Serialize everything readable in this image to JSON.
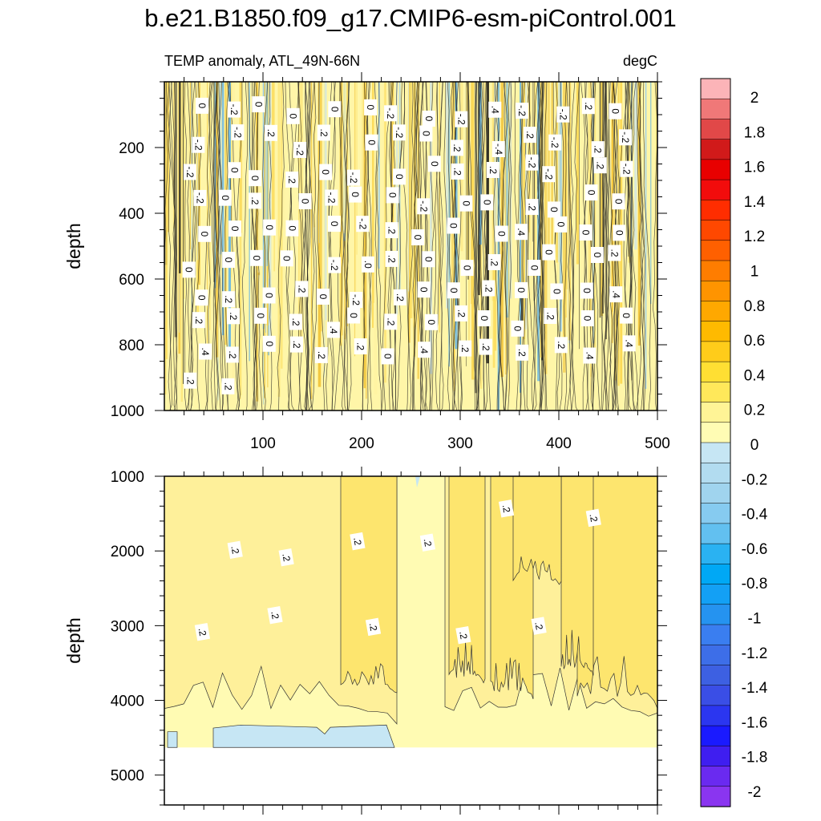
{
  "chart_data": {
    "type": "heatmap",
    "title": "b.e21.B1850.f09_g17.CMIP6-esm-piControl.001",
    "left_subtitle": "TEMP anomaly, ATL_49N-66N",
    "right_subtitle": "degC",
    "x": {
      "label": "",
      "range": [
        0,
        500
      ],
      "ticks": [
        100,
        200,
        300,
        400,
        500
      ]
    },
    "panels": [
      {
        "name": "upper",
        "ylabel": "depth",
        "yrange": [
          0,
          1000
        ],
        "yticks": [
          200,
          400,
          600,
          800,
          1000
        ]
      },
      {
        "name": "lower",
        "ylabel": "depth",
        "yrange": [
          1000,
          5400
        ],
        "yticks": [
          1000,
          2000,
          3000,
          4000,
          5000
        ]
      }
    ],
    "colorbar": {
      "unit": "degC",
      "labels": [
        "2",
        "1.8",
        "1.6",
        "1.4",
        "1.2",
        "1",
        "0.8",
        "0.6",
        "0.4",
        "0.2",
        "0",
        "-0.2",
        "-0.4",
        "-0.6",
        "-0.8",
        "-1",
        "-1.2",
        "-1.4",
        "-1.6",
        "-1.8",
        "-2"
      ],
      "colors": [
        "#fcb4b8",
        "#f07878",
        "#e14848",
        "#d11a1a",
        "#e80000",
        "#f20c0c",
        "#ff2d00",
        "#ff4800",
        "#ff6000",
        "#ff7d00",
        "#ff9400",
        "#ffa800",
        "#ffba00",
        "#ffcc1a",
        "#ffdf33",
        "#ffe85a",
        "#fff496",
        "#fffcb4",
        "#c6e6f4",
        "#b2dcf0",
        "#a0d4ee",
        "#86cbf0",
        "#62c0f0",
        "#2ab2f2",
        "#00a8f5",
        "#13a0f5",
        "#2593f0",
        "#3a7ef0",
        "#3d6ee8",
        "#3d60e2",
        "#3a4ee6",
        "#2b36f0",
        "#1a1aff",
        "#3f1ef0",
        "#6a2af0",
        "#8a35f0"
      ]
    },
    "contour_labels_upper": [
      "0",
      "-.2",
      "0",
      "0",
      "0",
      "0",
      "-.2",
      "0",
      "-.2",
      ".4",
      "-.2",
      "-.2",
      ".2",
      "0",
      "-.2",
      "-.2",
      ".2",
      "-.2",
      ".2",
      "0",
      "-.2",
      "0",
      ".2",
      "-.4",
      ".2",
      "-.2",
      ".2",
      "-.2",
      "-.2",
      "0",
      "0",
      ".2",
      "0",
      "-.2",
      "0",
      "0",
      ".2",
      ".2",
      "-.2",
      "-.2",
      ".2",
      "-.2",
      "-.2",
      "0",
      ".2",
      "0",
      "-.2",
      "0",
      "0",
      "-.2",
      "0",
      "0",
      ".2",
      "0",
      "0",
      "0",
      "0",
      "0",
      "0",
      "0",
      "0",
      "-.2",
      ".2",
      "0",
      "0",
      "0",
      ".4",
      "0",
      "0",
      "0",
      "0",
      "0",
      "0",
      "0",
      "-.2",
      ".0",
      ".2",
      "0",
      "0",
      ".2",
      "0",
      "0",
      "0",
      ".2",
      "0",
      ".2",
      "0",
      ".2",
      "0",
      "-.2",
      ".2",
      "0",
      "0",
      ".2",
      "0",
      "0",
      "0",
      ".4",
      ".2",
      ".2",
      "0",
      ".2",
      ".4",
      "0",
      ".2",
      "0",
      ".2",
      "0",
      "0",
      ".2",
      "0",
      "0",
      ".4",
      ".2",
      "0",
      ".2",
      ".2",
      ".2",
      "0",
      ".4",
      ".2",
      ".2",
      ".2",
      ".2",
      ".4",
      ".4",
      ".2",
      ".2"
    ],
    "contour_labels_lower": [
      ".2",
      ".2",
      ".2",
      ".2",
      ".2",
      ".2",
      ".2",
      ".2",
      ".2",
      ".2",
      ".2"
    ]
  }
}
